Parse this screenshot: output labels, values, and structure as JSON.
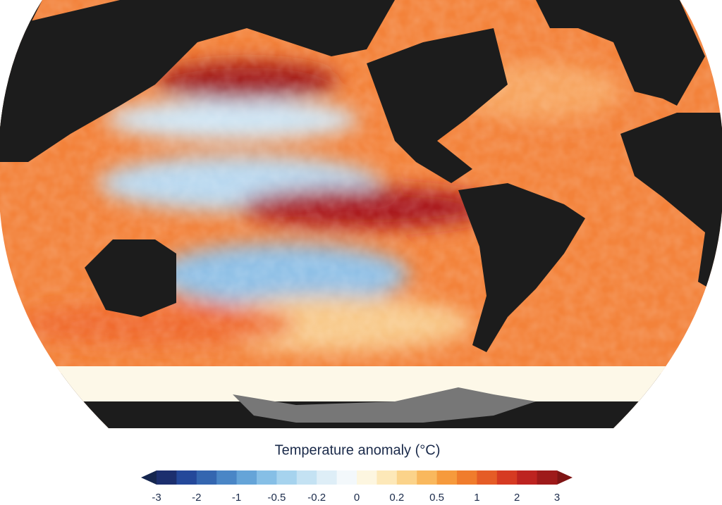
{
  "legend": {
    "title": "Temperature anomaly (°C)",
    "ticks": [
      -3,
      -2,
      -1,
      -0.5,
      -0.2,
      0,
      0.2,
      0.5,
      1,
      2,
      3
    ],
    "colors": [
      "#1c2f6e",
      "#24489a",
      "#3466b0",
      "#4a86c6",
      "#65a4d8",
      "#86bfe6",
      "#a6d3ee",
      "#c4e2f3",
      "#deeef7",
      "#f3f8fb",
      "#fdf6e0",
      "#fde8b8",
      "#fbd38a",
      "#f9b85d",
      "#f69a3c",
      "#f07c2c",
      "#e55c26",
      "#d63a22",
      "#bd2320",
      "#9e1a1a"
    ],
    "under_color": "#15264f",
    "over_color": "#7f1414"
  }
}
